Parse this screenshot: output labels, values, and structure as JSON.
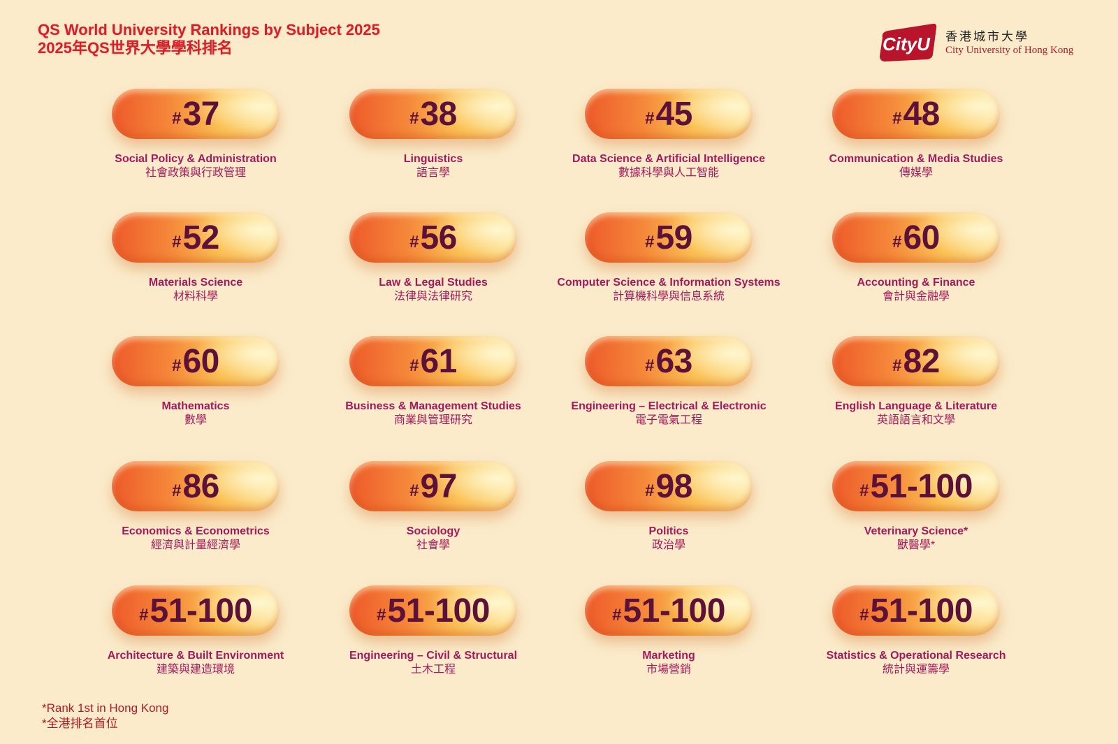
{
  "header": {
    "title": "QS World University Rankings by Subject 2025",
    "subtitle": "2025年QS世界大學學科排名"
  },
  "logo": {
    "mark": "CityU",
    "name_zh": "香港城市大學",
    "name_en": "City University of Hong Kong"
  },
  "rank_prefix": "#",
  "subjects": [
    {
      "rank": "37",
      "name_en": "Social Policy & Administration",
      "name_zh": "社會政策與行政管理"
    },
    {
      "rank": "38",
      "name_en": "Linguistics",
      "name_zh": "語言學"
    },
    {
      "rank": "45",
      "name_en": "Data Science & Artificial Intelligence",
      "name_zh": "數據科學與人工智能"
    },
    {
      "rank": "48",
      "name_en": "Communication & Media Studies",
      "name_zh": "傳媒學"
    },
    {
      "rank": "52",
      "name_en": "Materials Science",
      "name_zh": "材料科學"
    },
    {
      "rank": "56",
      "name_en": "Law & Legal Studies",
      "name_zh": "法律與法律研究"
    },
    {
      "rank": "59",
      "name_en": "Computer Science & Information Systems",
      "name_zh": "計算機科學與信息系統"
    },
    {
      "rank": "60",
      "name_en": "Accounting & Finance",
      "name_zh": "會計與金融學"
    },
    {
      "rank": "60",
      "name_en": "Mathematics",
      "name_zh": "數學"
    },
    {
      "rank": "61",
      "name_en": "Business & Management Studies",
      "name_zh": "商業與管理研究"
    },
    {
      "rank": "63",
      "name_en": "Engineering – Electrical & Electronic",
      "name_zh": "電子電氣工程"
    },
    {
      "rank": "82",
      "name_en": "English Language & Literature",
      "name_zh": "英語語言和文學"
    },
    {
      "rank": "86",
      "name_en": "Economics & Econometrics",
      "name_zh": "經濟與計量經濟學"
    },
    {
      "rank": "97",
      "name_en": "Sociology",
      "name_zh": "社會學"
    },
    {
      "rank": "98",
      "name_en": "Politics",
      "name_zh": "政治學"
    },
    {
      "rank": "51-100",
      "name_en": "Veterinary Science*",
      "name_zh": "獸醫學*"
    },
    {
      "rank": "51-100",
      "name_en": "Architecture & Built Environment",
      "name_zh": "建築與建造環境"
    },
    {
      "rank": "51-100",
      "name_en": "Engineering – Civil & Structural",
      "name_zh": "土木工程"
    },
    {
      "rank": "51-100",
      "name_en": "Marketing",
      "name_zh": "市場營銷"
    },
    {
      "rank": "51-100",
      "name_en": "Statistics & Operational Research",
      "name_zh": "統計與運籌學"
    }
  ],
  "footnote": {
    "en": "*Rank 1st in Hong Kong",
    "zh": "*全港排名首位"
  }
}
